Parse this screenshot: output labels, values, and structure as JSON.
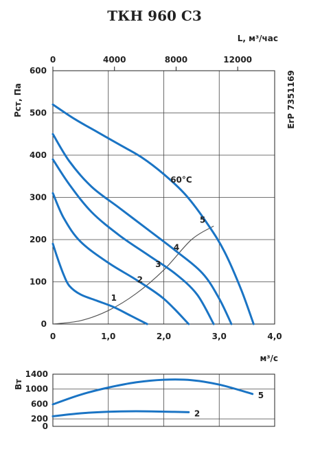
{
  "chart_data": [
    {
      "type": "line",
      "title": "ТКН 960 С3",
      "xlabel": "м³/с",
      "xlabel_top": "L, м³/час",
      "ylabel": "Рст, Па",
      "side_label": "ErP 7351169",
      "xlim": [
        0,
        4.0
      ],
      "ylim": [
        0,
        600
      ],
      "xticks": [
        "0",
        "1,0",
        "2,0",
        "3,0",
        "4,0"
      ],
      "xticks_values": [
        0,
        1,
        2,
        3,
        4
      ],
      "xticks_top": [
        "0",
        "4000",
        "8000",
        "12000"
      ],
      "xticks_top_values": [
        0,
        4000,
        8000,
        12000
      ],
      "yticks": [
        "0",
        "100",
        "200",
        "300",
        "400",
        "500",
        "600"
      ],
      "yticks_values": [
        0,
        100,
        200,
        300,
        400,
        500,
        600
      ],
      "grid": true,
      "annotation": "60°C",
      "annotation_x": 2.12,
      "annotation_y": 335,
      "colors": {
        "curves": "#1a74c4",
        "system": "#555555"
      },
      "system_curve": {
        "x": [
          0,
          0.5,
          1.0,
          1.5,
          2.0,
          2.5,
          2.9
        ],
        "y": [
          0,
          8,
          32,
          72,
          128,
          200,
          232
        ]
      },
      "series": [
        {
          "label": "1",
          "label_x": 1.1,
          "label_y": 55,
          "x": [
            0,
            0.1,
            0.2,
            0.3,
            0.5,
            0.8,
            1.1,
            1.4,
            1.7
          ],
          "y": [
            190,
            150,
            115,
            90,
            70,
            55,
            40,
            20,
            0
          ]
        },
        {
          "label": "2",
          "label_x": 1.57,
          "label_y": 98,
          "x": [
            0,
            0.2,
            0.5,
            1.0,
            1.5,
            2.0,
            2.45
          ],
          "y": [
            310,
            250,
            195,
            145,
            105,
            60,
            0
          ]
        },
        {
          "label": "3",
          "label_x": 1.9,
          "label_y": 135,
          "x": [
            0,
            0.3,
            0.7,
            1.2,
            1.7,
            2.2,
            2.6,
            2.9
          ],
          "y": [
            390,
            330,
            265,
            210,
            165,
            120,
            70,
            0
          ]
        },
        {
          "label": "4",
          "label_x": 2.23,
          "label_y": 175,
          "x": [
            0,
            0.3,
            0.7,
            1.2,
            1.7,
            2.2,
            2.7,
            3.0,
            3.22
          ],
          "y": [
            450,
            385,
            325,
            275,
            225,
            175,
            120,
            60,
            0
          ]
        },
        {
          "label": "5",
          "label_x": 2.7,
          "label_y": 240,
          "x": [
            0,
            0.4,
            0.8,
            1.2,
            1.6,
            2.0,
            2.4,
            2.8,
            3.1,
            3.4,
            3.62
          ],
          "y": [
            520,
            485,
            455,
            425,
            395,
            355,
            305,
            235,
            170,
            80,
            0
          ]
        }
      ]
    },
    {
      "type": "line",
      "ylabel": "Вт",
      "xlim": [
        0,
        4.0
      ],
      "ylim": [
        0,
        1400
      ],
      "yticks": [
        "0",
        "200",
        "600",
        "1000",
        "1400"
      ],
      "yticks_values": [
        0,
        200,
        600,
        1000,
        1400
      ],
      "grid": true,
      "series": [
        {
          "label": "5",
          "x": [
            0,
            0.5,
            1.0,
            1.5,
            2.0,
            2.5,
            3.0,
            3.6
          ],
          "y": [
            590,
            850,
            1040,
            1180,
            1250,
            1240,
            1120,
            870
          ]
        },
        {
          "label": "2",
          "x": [
            0,
            0.5,
            1.0,
            1.5,
            2.0,
            2.45
          ],
          "y": [
            270,
            350,
            390,
            405,
            395,
            380
          ]
        }
      ]
    }
  ]
}
